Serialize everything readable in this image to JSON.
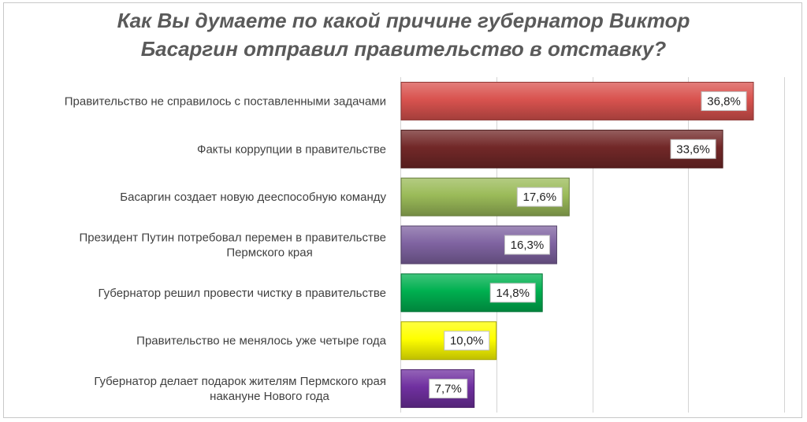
{
  "chart_data": {
    "type": "bar",
    "orientation": "horizontal",
    "title": "Как Вы думаете по какой причине губернатор Виктор Басаргин отправил правительство в отставку?",
    "title_lines": [
      "Как Вы думаете по какой причине губернатор Виктор",
      "Басаргин отправил правительство в отставку?"
    ],
    "categories": [
      [
        "Правительство не справилось с поставленными задачами"
      ],
      [
        "Факты коррупции в правительстве"
      ],
      [
        "Басаргин создает новую дееспособную команду"
      ],
      [
        "Президент Путин потребовал перемен в правительстве",
        "Пермского края"
      ],
      [
        "Губернатор решил провести чистку в правительстве"
      ],
      [
        "Правительство не менялось уже четыре года"
      ],
      [
        "Губернатор делает подарок жителям Пермского края",
        "накануне Нового года"
      ]
    ],
    "values": [
      36.8,
      33.6,
      17.6,
      16.3,
      14.8,
      10.0,
      7.7
    ],
    "value_labels": [
      "36,8%",
      "33,6%",
      "17,6%",
      "16,3%",
      "14,8%",
      "10,0%",
      "7,7%"
    ],
    "colors": [
      "#d9534f",
      "#722828",
      "#9bbb59",
      "#8064a2",
      "#00b050",
      "#ffff00",
      "#7030a0"
    ],
    "xlim": [
      0,
      40
    ],
    "grid": true,
    "legend": "none"
  }
}
